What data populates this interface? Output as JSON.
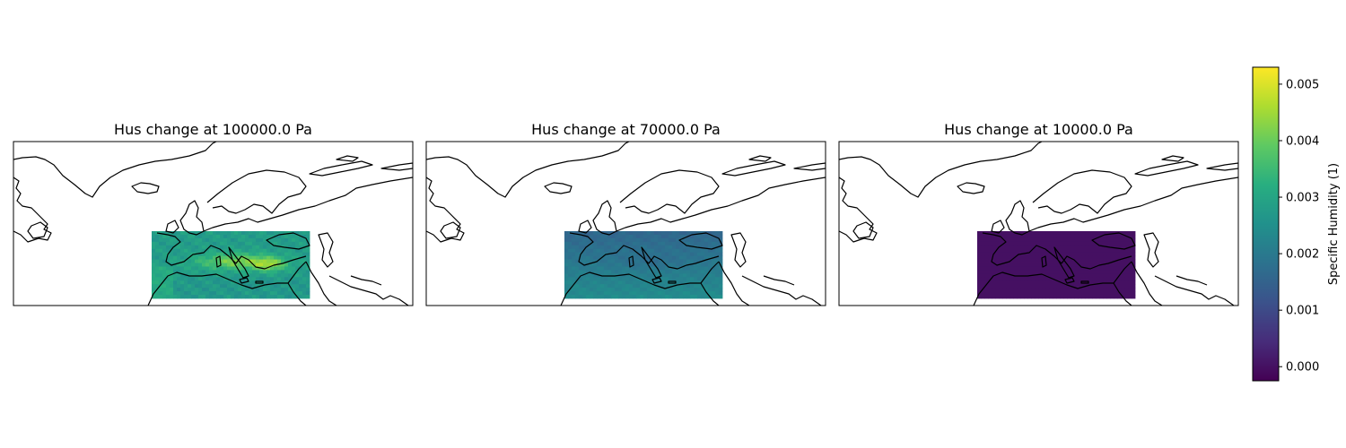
{
  "figure": {
    "panels": [
      {
        "title": "Hus change at 100000.0 Pa",
        "field": "surface"
      },
      {
        "title": "Hus change at 70000.0 Pa",
        "field": "mid"
      },
      {
        "title": "Hus change at 10000.0 Pa",
        "field": "upper"
      }
    ],
    "colorbar": {
      "label": "Specific Humidity (1)",
      "colormap": "viridis",
      "range": [
        -0.00025,
        0.0053
      ],
      "ticks": [
        "0.000",
        "0.001",
        "0.002",
        "0.003",
        "0.004",
        "0.005"
      ],
      "tick_values": [
        0,
        0.001,
        0.002,
        0.003,
        0.004,
        0.005
      ]
    }
  },
  "colors": {
    "coastline": "#000000",
    "frame": "#000000"
  }
}
